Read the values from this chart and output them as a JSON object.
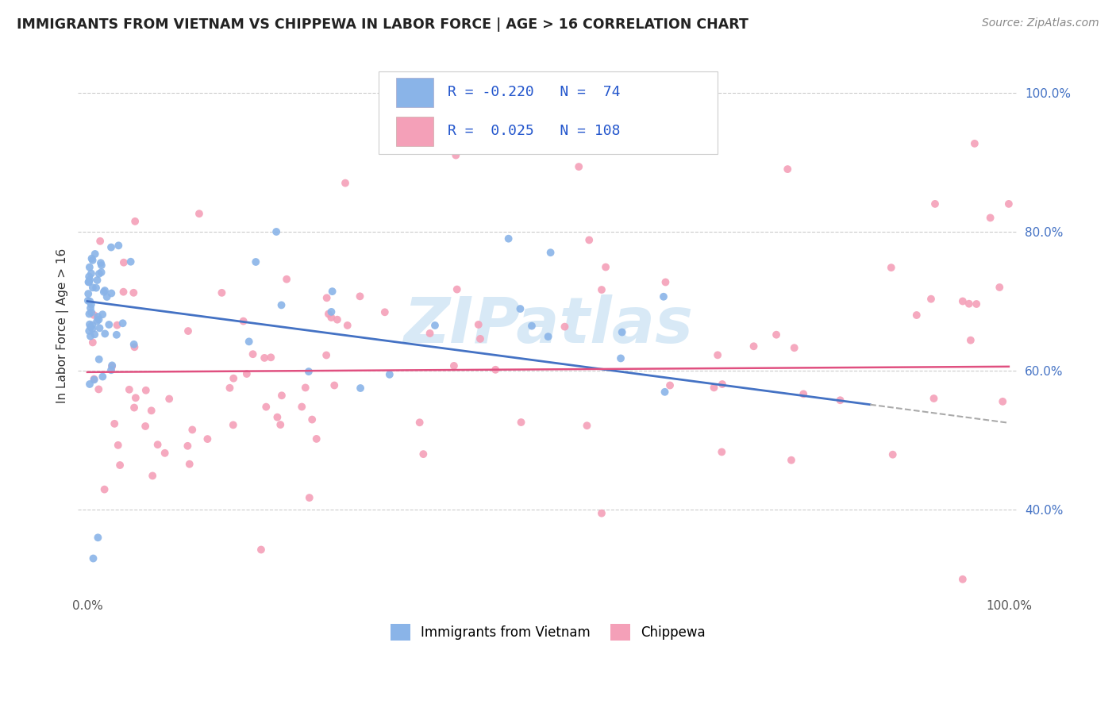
{
  "title": "IMMIGRANTS FROM VIETNAM VS CHIPPEWA IN LABOR FORCE | AGE > 16 CORRELATION CHART",
  "source_text": "Source: ZipAtlas.com",
  "ylabel": "In Labor Force | Age > 16",
  "color_blue": "#8ab4e8",
  "color_pink": "#f4a0b8",
  "trend_blue": "#4472c4",
  "trend_pink": "#e05080",
  "watermark": "ZIPatlas",
  "legend_text1": "R = -0.220   N =  74",
  "legend_text2": "R =  0.025   N = 108"
}
